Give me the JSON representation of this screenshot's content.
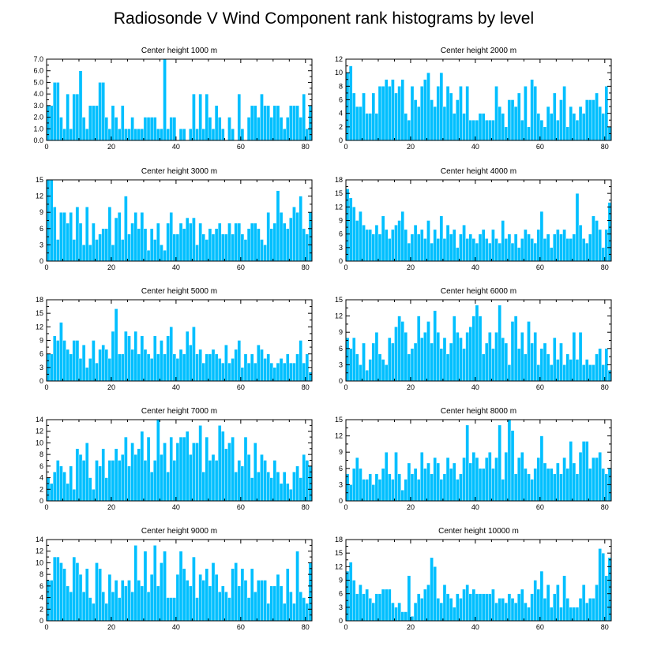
{
  "title": "Radiosonde V Wind Component rank histograms by level",
  "colors": {
    "bar": "#00bfff",
    "frame": "#000000"
  },
  "chart_data": [
    {
      "type": "bar",
      "title": "Center height 1000 m",
      "xlim": [
        0,
        82
      ],
      "ylim": [
        0,
        7
      ],
      "yticks": [
        "0.0",
        "1.0",
        "2.0",
        "3.0",
        "4.0",
        "5.0",
        "6.0",
        "7.0"
      ],
      "yticks_values": [
        0,
        1,
        2,
        3,
        4,
        5,
        6,
        7
      ],
      "xticks": [
        "0",
        "20",
        "40",
        "60",
        "80"
      ],
      "xticks_values": [
        0,
        20,
        40,
        60,
        80
      ],
      "values": [
        3,
        3,
        5,
        5,
        2,
        1,
        4,
        1,
        4,
        4,
        6,
        2,
        1,
        3,
        3,
        3,
        5,
        5,
        2,
        1,
        3,
        2,
        1,
        3,
        1,
        1,
        2,
        1,
        1,
        1,
        2,
        2,
        2,
        2,
        1,
        1,
        7,
        1,
        2,
        2,
        0,
        1,
        1,
        0,
        1,
        4,
        1,
        4,
        1,
        4,
        2,
        1,
        3,
        2,
        1,
        0,
        2,
        1,
        0,
        4,
        1,
        0,
        2,
        3,
        3,
        2,
        4,
        3,
        3,
        2,
        3,
        3,
        2,
        1,
        2,
        3,
        3,
        3,
        2,
        4,
        1,
        3
      ]
    },
    {
      "type": "bar",
      "title": "Center height 2000 m",
      "xlim": [
        0,
        82
      ],
      "ylim": [
        0,
        12
      ],
      "yticks": [
        "0",
        "2",
        "4",
        "6",
        "8",
        "10",
        "12"
      ],
      "yticks_values": [
        0,
        2,
        4,
        6,
        8,
        10,
        12
      ],
      "xticks": [
        "0",
        "20",
        "40",
        "60",
        "80"
      ],
      "xticks_values": [
        0,
        20,
        40,
        60,
        80
      ],
      "values": [
        10,
        11,
        7,
        5,
        5,
        7,
        4,
        4,
        7,
        4,
        8,
        8,
        9,
        8,
        9,
        7,
        8,
        9,
        4,
        3,
        8,
        6,
        5,
        8,
        9,
        10,
        6,
        5,
        8,
        10,
        5,
        8,
        7,
        4,
        6,
        8,
        4,
        8,
        3,
        3,
        3,
        4,
        4,
        3,
        3,
        3,
        8,
        5,
        4,
        2,
        6,
        6,
        5,
        7,
        3,
        8,
        2,
        9,
        8,
        4,
        3,
        2,
        5,
        4,
        7,
        3,
        6,
        8,
        2,
        5,
        4,
        3,
        5,
        4,
        6,
        6,
        6,
        7,
        5,
        4,
        8,
        2
      ]
    },
    {
      "type": "bar",
      "title": "Center height 3000 m",
      "xlim": [
        0,
        82
      ],
      "ylim": [
        0,
        15
      ],
      "yticks": [
        "0",
        "3",
        "6",
        "9",
        "12",
        "15"
      ],
      "yticks_values": [
        0,
        3,
        6,
        9,
        12,
        15
      ],
      "xticks": [
        "0",
        "20",
        "40",
        "60",
        "80"
      ],
      "xticks_values": [
        0,
        20,
        40,
        60,
        80
      ],
      "values": [
        15,
        15,
        10,
        4,
        9,
        9,
        7,
        9,
        4,
        10,
        7,
        3,
        10,
        3,
        7,
        4,
        5,
        6,
        6,
        10,
        3,
        8,
        9,
        4,
        12,
        5,
        7,
        9,
        6,
        9,
        6,
        2,
        6,
        4,
        7,
        3,
        2,
        7,
        9,
        5,
        5,
        7,
        6,
        8,
        7,
        8,
        3,
        7,
        5,
        4,
        6,
        5,
        6,
        7,
        5,
        5,
        7,
        5,
        7,
        7,
        5,
        4,
        6,
        7,
        7,
        6,
        4,
        3,
        9,
        6,
        7,
        13,
        9,
        7,
        6,
        8,
        10,
        9,
        12,
        6,
        5,
        9
      ]
    },
    {
      "type": "bar",
      "title": "Center height 4000 m",
      "xlim": [
        0,
        82
      ],
      "ylim": [
        0,
        18
      ],
      "yticks": [
        "0",
        "3",
        "6",
        "9",
        "12",
        "15",
        "18"
      ],
      "yticks_values": [
        0,
        3,
        6,
        9,
        12,
        15,
        18
      ],
      "xticks": [
        "0",
        "20",
        "40",
        "60",
        "80"
      ],
      "xticks_values": [
        0,
        20,
        40,
        60,
        80
      ],
      "values": [
        16,
        14,
        12,
        9,
        11,
        8,
        7,
        7,
        6,
        8,
        6,
        10,
        7,
        5,
        7,
        8,
        9,
        11,
        7,
        4,
        6,
        8,
        6,
        7,
        5,
        9,
        4,
        7,
        5,
        10,
        5,
        8,
        6,
        7,
        3,
        6,
        8,
        5,
        6,
        5,
        4,
        6,
        7,
        5,
        4,
        7,
        5,
        4,
        9,
        5,
        6,
        4,
        6,
        3,
        5,
        7,
        6,
        5,
        4,
        7,
        11,
        5,
        6,
        3,
        6,
        7,
        6,
        7,
        5,
        5,
        6,
        15,
        8,
        5,
        4,
        6,
        10,
        9,
        7,
        3,
        7,
        13
      ]
    },
    {
      "type": "bar",
      "title": "Center height 5000 m",
      "xlim": [
        0,
        82
      ],
      "ylim": [
        0,
        18
      ],
      "yticks": [
        "0",
        "3",
        "6",
        "9",
        "12",
        "15",
        "18"
      ],
      "yticks_values": [
        0,
        3,
        6,
        9,
        12,
        15,
        18
      ],
      "xticks": [
        "0",
        "20",
        "40",
        "60",
        "80"
      ],
      "xticks_values": [
        0,
        20,
        40,
        60,
        80
      ],
      "values": [
        6,
        6,
        10,
        9,
        13,
        9,
        7,
        6,
        9,
        9,
        5,
        8,
        3,
        5,
        9,
        4,
        7,
        8,
        7,
        5,
        11,
        16,
        6,
        6,
        11,
        10,
        7,
        11,
        6,
        10,
        7,
        6,
        5,
        10,
        6,
        9,
        6,
        10,
        12,
        6,
        5,
        7,
        6,
        11,
        8,
        12,
        6,
        7,
        4,
        6,
        6,
        7,
        6,
        5,
        4,
        8,
        4,
        5,
        7,
        9,
        3,
        6,
        4,
        6,
        4,
        8,
        7,
        5,
        6,
        4,
        3,
        4,
        5,
        4,
        6,
        4,
        4,
        6,
        9,
        4,
        6,
        2
      ]
    },
    {
      "type": "bar",
      "title": "Center height 6000 m",
      "xlim": [
        0,
        82
      ],
      "ylim": [
        0,
        15
      ],
      "yticks": [
        "0",
        "3",
        "6",
        "9",
        "12",
        "15"
      ],
      "yticks_values": [
        0,
        3,
        6,
        9,
        12,
        15
      ],
      "xticks": [
        "0",
        "20",
        "40",
        "60",
        "80"
      ],
      "xticks_values": [
        0,
        20,
        40,
        60,
        80
      ],
      "values": [
        8,
        6,
        8,
        5,
        3,
        7,
        2,
        4,
        7,
        9,
        5,
        4,
        3,
        8,
        7,
        10,
        12,
        11,
        9,
        5,
        6,
        7,
        12,
        8,
        9,
        11,
        7,
        13,
        9,
        6,
        8,
        5,
        7,
        12,
        9,
        8,
        6,
        9,
        10,
        12,
        14,
        12,
        5,
        7,
        9,
        6,
        9,
        14,
        8,
        7,
        3,
        11,
        12,
        6,
        9,
        5,
        11,
        7,
        9,
        3,
        6,
        7,
        5,
        3,
        8,
        4,
        7,
        3,
        5,
        4,
        9,
        4,
        9,
        3,
        4,
        3,
        3,
        5,
        6,
        3,
        6,
        2
      ]
    },
    {
      "type": "bar",
      "title": "Center height 7000 m",
      "xlim": [
        0,
        82
      ],
      "ylim": [
        0,
        14
      ],
      "yticks": [
        "0",
        "2",
        "4",
        "6",
        "8",
        "10",
        "12",
        "14"
      ],
      "yticks_values": [
        0,
        2,
        4,
        6,
        8,
        10,
        12,
        14
      ],
      "xticks": [
        "0",
        "20",
        "40",
        "60",
        "80"
      ],
      "xticks_values": [
        0,
        20,
        40,
        60,
        80
      ],
      "values": [
        4,
        3,
        5,
        7,
        6,
        5,
        3,
        6,
        2,
        9,
        8,
        7,
        10,
        4,
        2,
        7,
        6,
        9,
        4,
        7,
        7,
        9,
        7,
        8,
        11,
        6,
        10,
        8,
        9,
        12,
        7,
        11,
        5,
        7,
        14,
        8,
        10,
        5,
        11,
        7,
        10,
        11,
        11,
        12,
        8,
        10,
        10,
        13,
        5,
        11,
        7,
        8,
        7,
        13,
        12,
        9,
        10,
        11,
        5,
        7,
        6,
        11,
        8,
        4,
        10,
        5,
        8,
        7,
        5,
        4,
        7,
        5,
        3,
        5,
        3,
        2,
        5,
        6,
        4,
        8,
        7,
        6
      ]
    },
    {
      "type": "bar",
      "title": "Center height 8000 m",
      "xlim": [
        0,
        82
      ],
      "ylim": [
        0,
        15
      ],
      "yticks": [
        "0",
        "3",
        "6",
        "9",
        "12",
        "15"
      ],
      "yticks_values": [
        0,
        3,
        6,
        9,
        12,
        15
      ],
      "xticks": [
        "0",
        "20",
        "40",
        "60",
        "80"
      ],
      "xticks_values": [
        0,
        20,
        40,
        60,
        80
      ],
      "values": [
        5,
        3,
        6,
        8,
        6,
        4,
        4,
        5,
        3,
        5,
        4,
        6,
        9,
        5,
        4,
        9,
        5,
        2,
        4,
        7,
        5,
        6,
        4,
        9,
        6,
        7,
        5,
        8,
        7,
        4,
        5,
        8,
        6,
        7,
        4,
        5,
        8,
        14,
        7,
        9,
        8,
        6,
        6,
        8,
        9,
        6,
        8,
        14,
        4,
        9,
        15,
        13,
        5,
        8,
        9,
        6,
        5,
        4,
        6,
        8,
        12,
        7,
        6,
        6,
        5,
        7,
        5,
        8,
        6,
        11,
        7,
        5,
        9,
        11,
        11,
        6,
        8,
        8,
        9,
        6,
        5,
        6
      ]
    },
    {
      "type": "bar",
      "title": "Center height 9000 m",
      "xlim": [
        0,
        82
      ],
      "ylim": [
        0,
        14
      ],
      "yticks": [
        "0",
        "2",
        "4",
        "6",
        "8",
        "10",
        "12",
        "14"
      ],
      "yticks_values": [
        0,
        2,
        4,
        6,
        8,
        10,
        12,
        14
      ],
      "xticks": [
        "0",
        "20",
        "40",
        "60",
        "80"
      ],
      "xticks_values": [
        0,
        20,
        40,
        60,
        80
      ],
      "values": [
        7,
        7,
        11,
        11,
        10,
        9,
        6,
        5,
        11,
        10,
        8,
        5,
        9,
        4,
        3,
        10,
        9,
        5,
        3,
        8,
        5,
        7,
        4,
        7,
        6,
        7,
        5,
        13,
        7,
        6,
        12,
        5,
        8,
        13,
        6,
        10,
        12,
        4,
        4,
        4,
        8,
        12,
        9,
        7,
        6,
        11,
        4,
        8,
        7,
        9,
        6,
        10,
        8,
        5,
        6,
        5,
        4,
        9,
        10,
        6,
        9,
        7,
        4,
        9,
        5,
        7,
        7,
        7,
        3,
        6,
        6,
        8,
        6,
        3,
        9,
        5,
        3,
        12,
        5,
        4,
        3,
        10
      ]
    },
    {
      "type": "bar",
      "title": "Center height 10000 m",
      "xlim": [
        0,
        82
      ],
      "ylim": [
        0,
        18
      ],
      "yticks": [
        "0",
        "3",
        "6",
        "9",
        "12",
        "15",
        "18"
      ],
      "yticks_values": [
        0,
        3,
        6,
        9,
        12,
        15,
        18
      ],
      "xticks": [
        "0",
        "20",
        "40",
        "60",
        "80"
      ],
      "xticks_values": [
        0,
        20,
        40,
        60,
        80
      ],
      "values": [
        11,
        13,
        9,
        6,
        8,
        6,
        7,
        5,
        4,
        6,
        6,
        7,
        7,
        7,
        4,
        3,
        4,
        2,
        2,
        10,
        1,
        4,
        6,
        5,
        7,
        8,
        14,
        12,
        5,
        4,
        8,
        6,
        5,
        3,
        6,
        5,
        7,
        8,
        6,
        7,
        6,
        6,
        6,
        6,
        6,
        7,
        4,
        5,
        5,
        4,
        6,
        5,
        4,
        6,
        7,
        4,
        3,
        6,
        9,
        7,
        11,
        5,
        8,
        3,
        6,
        8,
        3,
        10,
        5,
        3,
        3,
        3,
        5,
        8,
        4,
        5,
        5,
        8,
        16,
        15,
        10,
        14
      ]
    }
  ]
}
